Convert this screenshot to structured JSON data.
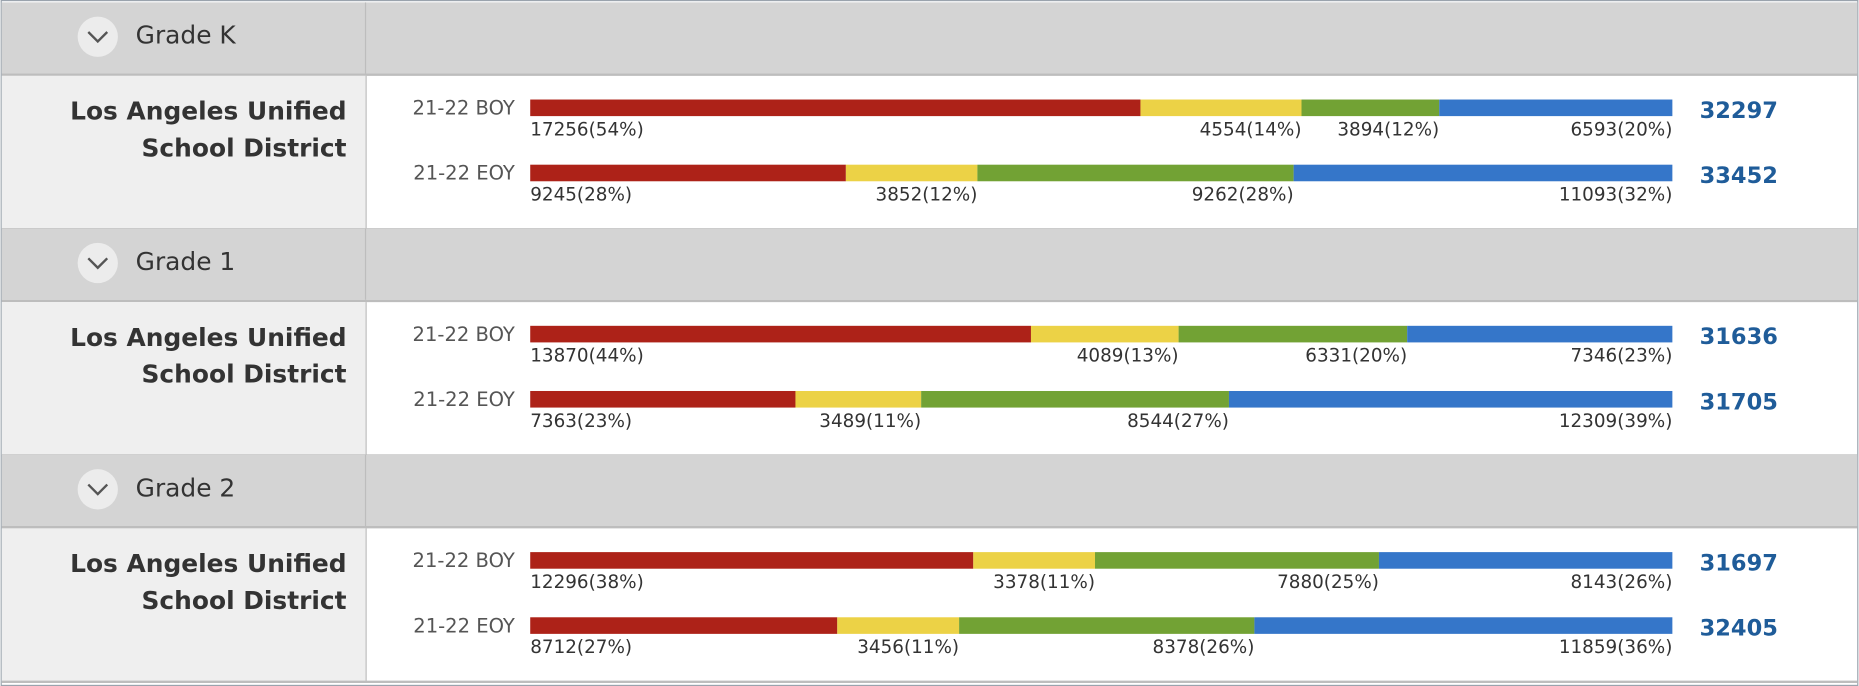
{
  "segment_colors": [
    "#ad2218",
    "#ecd246",
    "#72a234",
    "#3576c9"
  ],
  "grades": [
    {
      "title": "Grade K",
      "district": [
        "Los Angeles Unified",
        "School District"
      ],
      "rows": [
        {
          "period": "21-22 BOY",
          "total": 32297,
          "segments": [
            {
              "value": 17256,
              "label": "17256(54%)"
            },
            {
              "value": 4554,
              "label": "4554(14%)"
            },
            {
              "value": 3894,
              "label": "3894(12%)"
            },
            {
              "value": 6593,
              "label": "6593(20%)"
            }
          ]
        },
        {
          "period": "21-22 EOY",
          "total": 33452,
          "segments": [
            {
              "value": 9245,
              "label": "9245(28%)"
            },
            {
              "value": 3852,
              "label": "3852(12%)"
            },
            {
              "value": 9262,
              "label": "9262(28%)"
            },
            {
              "value": 11093,
              "label": "11093(32%)"
            }
          ]
        }
      ]
    },
    {
      "title": "Grade 1",
      "district": [
        "Los Angeles Unified",
        "School District"
      ],
      "rows": [
        {
          "period": "21-22 BOY",
          "total": 31636,
          "segments": [
            {
              "value": 13870,
              "label": "13870(44%)"
            },
            {
              "value": 4089,
              "label": "4089(13%)"
            },
            {
              "value": 6331,
              "label": "6331(20%)"
            },
            {
              "value": 7346,
              "label": "7346(23%)"
            }
          ]
        },
        {
          "period": "21-22 EOY",
          "total": 31705,
          "segments": [
            {
              "value": 7363,
              "label": "7363(23%)"
            },
            {
              "value": 3489,
              "label": "3489(11%)"
            },
            {
              "value": 8544,
              "label": "8544(27%)"
            },
            {
              "value": 12309,
              "label": "12309(39%)"
            }
          ]
        }
      ]
    },
    {
      "title": "Grade 2",
      "district": [
        "Los Angeles Unified",
        "School District"
      ],
      "rows": [
        {
          "period": "21-22 BOY",
          "total": 31697,
          "segments": [
            {
              "value": 12296,
              "label": "12296(38%)"
            },
            {
              "value": 3378,
              "label": "3378(11%)"
            },
            {
              "value": 7880,
              "label": "7880(25%)"
            },
            {
              "value": 8143,
              "label": "8143(26%)"
            }
          ]
        },
        {
          "period": "21-22 EOY",
          "total": 32405,
          "segments": [
            {
              "value": 8712,
              "label": "8712(27%)"
            },
            {
              "value": 3456,
              "label": "3456(11%)"
            },
            {
              "value": 8378,
              "label": "8378(26%)"
            },
            {
              "value": 11859,
              "label": "11859(36%)"
            }
          ]
        }
      ]
    }
  ]
}
